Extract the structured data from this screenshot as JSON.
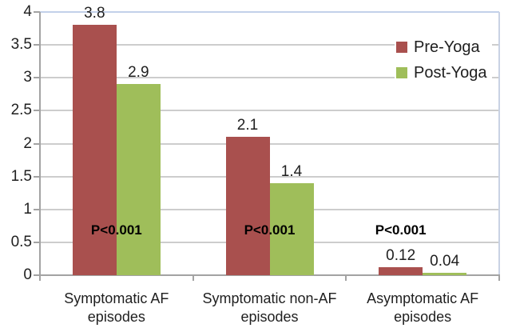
{
  "chart_data": {
    "type": "bar",
    "title": "",
    "categories": [
      "Symptomatic AF episodes",
      "Symptomatic non-AF episodes",
      "Asymptomatic AF episodes"
    ],
    "category_lines": [
      [
        "Symptomatic AF",
        "episodes"
      ],
      [
        "Symptomatic non-AF",
        "episodes"
      ],
      [
        "Asymptomatic AF",
        "episodes"
      ]
    ],
    "series": [
      {
        "name": "Pre-Yoga",
        "color": "#A9504E",
        "values": [
          3.8,
          2.1,
          0.12
        ]
      },
      {
        "name": "Post-Yoga",
        "color": "#9FBE5A",
        "values": [
          2.9,
          1.4,
          0.04
        ]
      }
    ],
    "value_labels": [
      [
        "3.8",
        "2.9"
      ],
      [
        "2.1",
        "1.4"
      ],
      [
        "0.12",
        "0.04"
      ]
    ],
    "p_labels": [
      "P<0.001",
      "P<0.001",
      "P<0.001"
    ],
    "y_axis": {
      "min": 0,
      "max": 4,
      "step": 0.5,
      "tick_labels": [
        "0",
        "0.5",
        "1",
        "1.5",
        "2",
        "2.5",
        "3",
        "3.5",
        "4"
      ]
    },
    "legend": {
      "position": "top-right",
      "entries": [
        "Pre-Yoga",
        "Post-Yoga"
      ]
    },
    "grid": true
  },
  "colors": {
    "pre_yoga": "#A9504E",
    "post_yoga": "#9FBE5A",
    "gridline": "#CDCDCD",
    "axis": "#A3A3A3",
    "top_border": "#C3D1EA",
    "right_border": "#C9D2E4",
    "text": "#1F1F1F"
  }
}
